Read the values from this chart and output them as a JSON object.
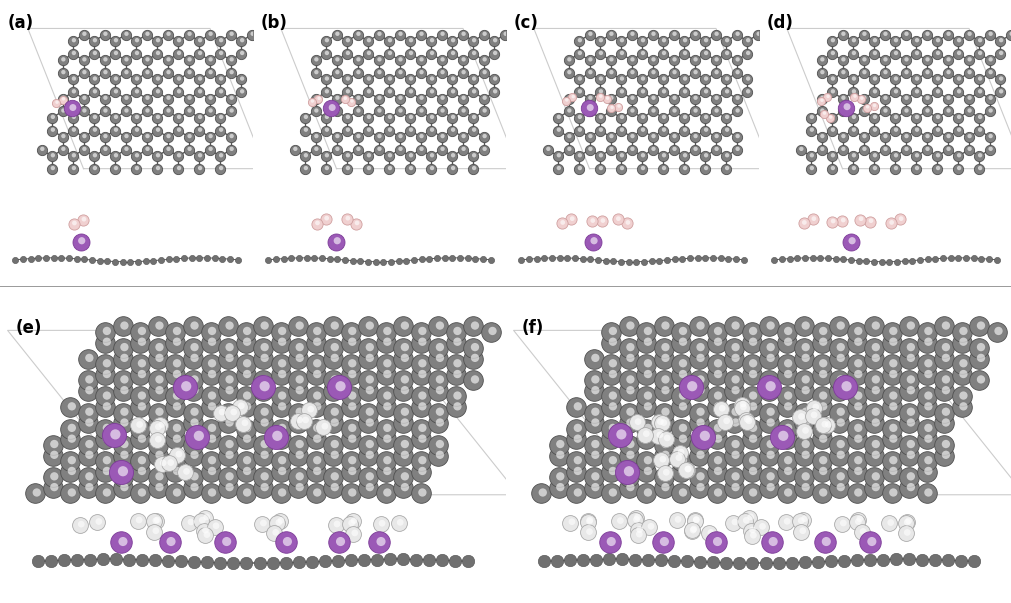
{
  "figure_width": 10.12,
  "figure_height": 6.03,
  "dpi": 100,
  "background_color": "#ffffff",
  "panel_labels": [
    "(a)",
    "(b)",
    "(c)",
    "(d)",
    "(e)",
    "(f)"
  ],
  "label_fontsize": 12,
  "carbon_color": "#808080",
  "carbon_highlight": "#aaaaaa",
  "carbon_edge_color": "#505050",
  "lithium_color": "#9B59B6",
  "lithium_edge_color": "#7D3C98",
  "hydrogen_color": "#e8e8e8",
  "hydrogen_edge_color": "#aaaaaa",
  "hydrogen_small_color": "#f0d0d0",
  "hydrogen_small_edge_color": "#d0a0a0",
  "bond_color": "#555555",
  "side_carbon_color": "#707070",
  "para_line_color": "#bbbbbb"
}
